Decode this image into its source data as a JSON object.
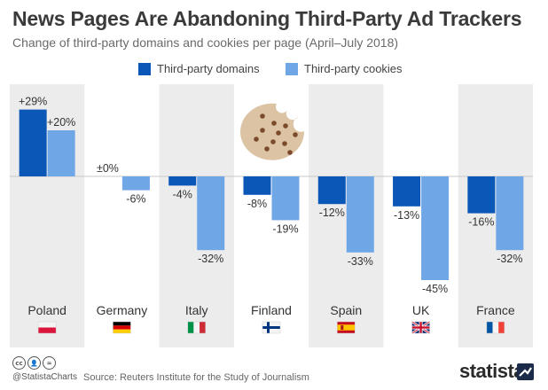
{
  "header": {
    "title": "News Pages Are Abandoning Third-Party Ad Trackers",
    "subtitle": "Change of third-party domains and cookies per page (April–July 2018)"
  },
  "colors": {
    "domains": "#0a57b8",
    "cookies": "#6fa6e6",
    "band": "#ececec",
    "zero_line": "#c8c8c8"
  },
  "chart_data": {
    "type": "bar",
    "unit": "%",
    "categories": [
      "Poland",
      "Germany",
      "Italy",
      "Finland",
      "Spain",
      "UK",
      "France"
    ],
    "flags": [
      "poland-flag",
      "germany-flag",
      "italy-flag",
      "finland-flag",
      "spain-flag",
      "uk-flag",
      "france-flag"
    ],
    "series": [
      {
        "name": "Third-party domains",
        "values": [
          29,
          0,
          -4,
          -8,
          -12,
          -13,
          -16
        ],
        "labels": [
          "+29%",
          "±0%",
          "-4%",
          "-8%",
          "-12%",
          "-13%",
          "-16%"
        ]
      },
      {
        "name": "Third-party cookies",
        "values": [
          20,
          -6,
          -32,
          -19,
          -33,
          -45,
          -32
        ],
        "labels": [
          "+20%",
          "-6%",
          "-32%",
          "-19%",
          "-33%",
          "-45%",
          "-32%"
        ]
      }
    ],
    "ylim": [
      -50,
      30
    ],
    "legend_position": "top-center",
    "grid": false
  },
  "decoration": {
    "illustration": "cookie-icon"
  },
  "footer": {
    "handle": "@StatistaCharts",
    "source": "Source: Reuters Institute for the Study of Journalism",
    "brand": "statista",
    "license_icons": [
      "cc",
      "by",
      "nd"
    ]
  }
}
